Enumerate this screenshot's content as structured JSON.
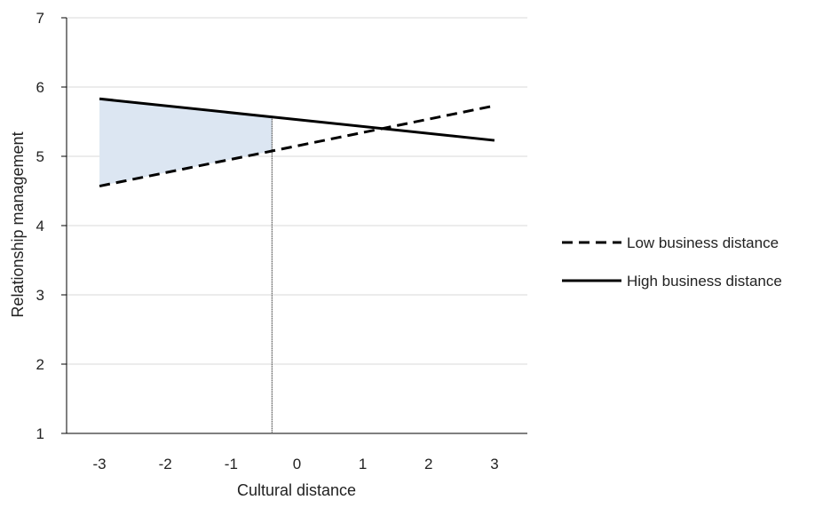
{
  "chart_data": {
    "type": "line",
    "title": "",
    "xlabel": "Cultural distance",
    "ylabel": "Relationship management",
    "xlim": [
      -3.5,
      3.5
    ],
    "ylim": [
      1,
      7
    ],
    "x_ticks": [
      -3,
      -2,
      -1,
      0,
      1,
      2,
      3
    ],
    "y_ticks": [
      1,
      2,
      3,
      4,
      5,
      6,
      7
    ],
    "grid": "horizontal",
    "legend_position": "right",
    "series": [
      {
        "name": "Low business distance",
        "style": "dashed",
        "color": "#000000",
        "points": [
          [
            -3,
            4.57
          ],
          [
            3,
            5.73
          ]
        ]
      },
      {
        "name": "High business distance",
        "style": "solid",
        "color": "#000000",
        "points": [
          [
            -3,
            5.83
          ],
          [
            3,
            5.23
          ]
        ]
      }
    ],
    "shaded_region": {
      "x_from": -3,
      "x_to": -0.38,
      "color": "#dce6f2"
    },
    "vertical_reference_line": {
      "x": -0.38,
      "style": "dotted"
    }
  }
}
